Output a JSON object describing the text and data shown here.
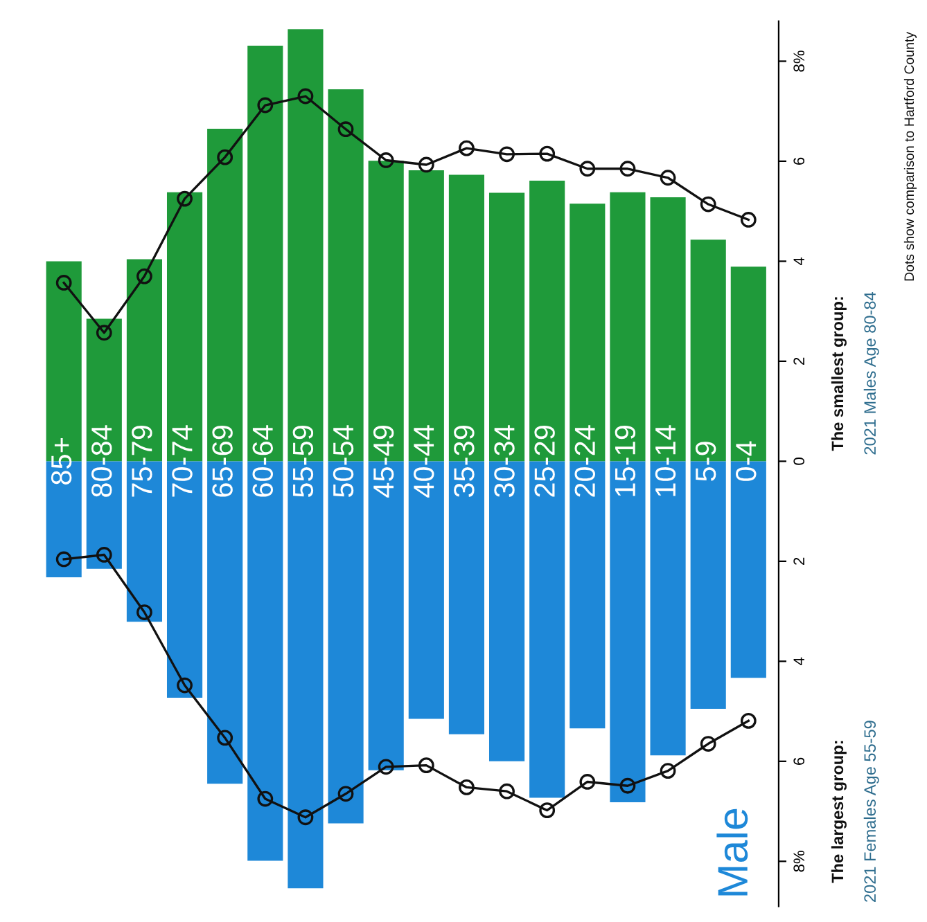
{
  "chart_data": {
    "type": "bar",
    "stacked": true,
    "categories": [
      "85+",
      "80-84",
      "75-79",
      "70-74",
      "65-69",
      "60-64",
      "55-59",
      "50-54",
      "45-49",
      "40-44",
      "35-39",
      "30-34",
      "25-29",
      "20-24",
      "15-19",
      "10-14",
      "5-9",
      "0-4"
    ],
    "series": [
      {
        "color": "#1f9a3a",
        "values": [
          4.0,
          2.85,
          4.04,
          5.38,
          6.65,
          8.31,
          8.64,
          7.44,
          6.01,
          5.82,
          5.73,
          5.37,
          5.61,
          5.15,
          5.38,
          5.28,
          4.43,
          3.89
        ]
      },
      {
        "name": "Male",
        "color": "#1e88d8",
        "values": [
          -2.32,
          -2.15,
          -3.21,
          -4.73,
          -6.45,
          -7.99,
          -8.54,
          -7.24,
          -6.18,
          -5.15,
          -5.46,
          -6.0,
          -6.73,
          -5.34,
          -6.82,
          -5.88,
          -4.95,
          -4.33
        ]
      },
      {
        "type": "line",
        "color": "#111111",
        "marker": "circle",
        "values": [
          3.57,
          2.57,
          3.7,
          5.25,
          6.08,
          7.12,
          7.3,
          6.64,
          6.02,
          5.93,
          6.26,
          6.14,
          6.15,
          5.85,
          5.85,
          5.67,
          5.14,
          4.83
        ]
      },
      {
        "type": "line",
        "color": "#111111",
        "marker": "circle",
        "values": [
          -1.96,
          -1.87,
          -3.02,
          -4.48,
          -5.53,
          -6.75,
          -7.12,
          -6.65,
          -6.11,
          -6.08,
          -6.52,
          -6.6,
          -6.98,
          -6.41,
          -6.49,
          -6.19,
          -5.65,
          -5.19
        ]
      }
    ],
    "ylim": [
      -8.9,
      8.8
    ],
    "yticks": [
      {
        "value": -8,
        "label": "8%"
      },
      {
        "value": -6,
        "label": "6"
      },
      {
        "value": -4,
        "label": "4"
      },
      {
        "value": -2,
        "label": "2"
      },
      0,
      2,
      4,
      6,
      {
        "value": 8,
        "label": "8%"
      }
    ],
    "annotations": [
      "The smallest group:",
      "2021 Males Age 80-84",
      "The largest group:",
      "2021 Females Age 55-59",
      "Dots show comparison to Hartford County"
    ],
    "grid": false,
    "legend": false
  }
}
